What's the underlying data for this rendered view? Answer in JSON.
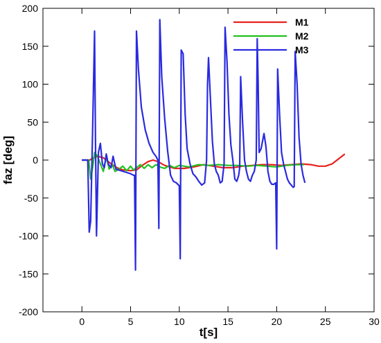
{
  "chart_data": {
    "type": "line",
    "title": "",
    "xlabel": "t[s]",
    "ylabel": "faz [deg]",
    "xlim": [
      -4,
      30
    ],
    "ylim": [
      -200,
      200
    ],
    "xticks": [
      0,
      5,
      10,
      15,
      20,
      25,
      30
    ],
    "yticks": [
      -200,
      -150,
      -100,
      -50,
      0,
      50,
      100,
      150,
      200
    ],
    "grid": false,
    "legend_position": "top-right",
    "series": [
      {
        "name": "M1",
        "color": "#e8201c",
        "points": [
          [
            0.0,
            0
          ],
          [
            0.8,
            0
          ],
          [
            1.2,
            3
          ],
          [
            1.6,
            5
          ],
          [
            2.2,
            3
          ],
          [
            3.0,
            -5
          ],
          [
            3.6,
            -10
          ],
          [
            4.2,
            -13
          ],
          [
            5.0,
            -14
          ],
          [
            5.6,
            -13
          ],
          [
            6.2,
            -7
          ],
          [
            6.8,
            -2
          ],
          [
            7.3,
            0
          ],
          [
            7.8,
            -2
          ],
          [
            8.5,
            -7
          ],
          [
            9.5,
            -11
          ],
          [
            10.5,
            -11
          ],
          [
            11.5,
            -9
          ],
          [
            12.5,
            -6
          ],
          [
            13.5,
            -8
          ],
          [
            14.5,
            -10
          ],
          [
            15.5,
            -10
          ],
          [
            16.5,
            -8
          ],
          [
            17.5,
            -7
          ],
          [
            18.5,
            -6
          ],
          [
            19.5,
            -6
          ],
          [
            20.5,
            -7
          ],
          [
            21.5,
            -6
          ],
          [
            22.5,
            -5
          ],
          [
            23.5,
            -6
          ],
          [
            24.3,
            -8
          ],
          [
            25.0,
            -8
          ],
          [
            25.7,
            -5
          ],
          [
            26.3,
            1
          ],
          [
            27.0,
            8
          ]
        ]
      },
      {
        "name": "M2",
        "color": "#22c01e",
        "points": [
          [
            0.0,
            0
          ],
          [
            0.7,
            0
          ],
          [
            0.9,
            -25
          ],
          [
            1.1,
            -10
          ],
          [
            1.3,
            10
          ],
          [
            1.6,
            5
          ],
          [
            1.9,
            -5
          ],
          [
            2.2,
            -15
          ],
          [
            2.5,
            5
          ],
          [
            2.8,
            -12
          ],
          [
            3.1,
            -5
          ],
          [
            3.4,
            -15
          ],
          [
            3.8,
            -12
          ],
          [
            4.2,
            -8
          ],
          [
            4.6,
            -14
          ],
          [
            5.0,
            -8
          ],
          [
            5.3,
            -13
          ],
          [
            5.6,
            -10
          ],
          [
            6.0,
            -6
          ],
          [
            6.4,
            -11
          ],
          [
            6.8,
            -6
          ],
          [
            7.2,
            -10
          ],
          [
            7.6,
            -6
          ],
          [
            8.0,
            -9
          ],
          [
            8.5,
            -11
          ],
          [
            9.0,
            -7
          ],
          [
            9.5,
            -10
          ],
          [
            10.0,
            -7
          ],
          [
            11.0,
            -9
          ],
          [
            12.0,
            -6
          ],
          [
            13.0,
            -7
          ],
          [
            14.0,
            -6
          ],
          [
            15.0,
            -7
          ],
          [
            16.0,
            -7
          ],
          [
            17.0,
            -8
          ],
          [
            18.0,
            -7
          ],
          [
            19.0,
            -8
          ],
          [
            20.0,
            -9
          ],
          [
            21.0,
            -7
          ],
          [
            22.0,
            -6
          ],
          [
            22.8,
            -6
          ]
        ]
      },
      {
        "name": "M3",
        "color": "#2a2ae0",
        "points": [
          [
            0.0,
            0
          ],
          [
            0.6,
            0
          ],
          [
            0.75,
            -95
          ],
          [
            0.9,
            -80
          ],
          [
            1.1,
            40
          ],
          [
            1.3,
            170
          ],
          [
            1.4,
            20
          ],
          [
            1.5,
            -100
          ],
          [
            1.7,
            10
          ],
          [
            1.9,
            22
          ],
          [
            2.1,
            -5
          ],
          [
            2.3,
            -10
          ],
          [
            2.5,
            8
          ],
          [
            2.7,
            -5
          ],
          [
            3.0,
            -10
          ],
          [
            3.2,
            5
          ],
          [
            3.5,
            -12
          ],
          [
            4.0,
            -14
          ],
          [
            4.5,
            -16
          ],
          [
            5.0,
            -18
          ],
          [
            5.3,
            -20
          ],
          [
            5.4,
            -20
          ],
          [
            5.5,
            -145
          ],
          [
            5.6,
            170
          ],
          [
            5.8,
            120
          ],
          [
            6.1,
            70
          ],
          [
            6.5,
            40
          ],
          [
            6.9,
            22
          ],
          [
            7.3,
            10
          ],
          [
            7.6,
            5
          ],
          [
            7.8,
            0
          ],
          [
            7.9,
            -90
          ],
          [
            8.0,
            185
          ],
          [
            8.2,
            110
          ],
          [
            8.5,
            55
          ],
          [
            8.8,
            12
          ],
          [
            9.1,
            -20
          ],
          [
            9.4,
            -28
          ],
          [
            9.7,
            -30
          ],
          [
            10.0,
            -34
          ],
          [
            10.1,
            -130
          ],
          [
            10.2,
            145
          ],
          [
            10.4,
            140
          ],
          [
            10.6,
            60
          ],
          [
            10.8,
            15
          ],
          [
            11.1,
            -5
          ],
          [
            11.4,
            -18
          ],
          [
            11.7,
            -22
          ],
          [
            12.0,
            -28
          ],
          [
            12.3,
            -33
          ],
          [
            12.6,
            -30
          ],
          [
            12.8,
            0
          ],
          [
            12.9,
            100
          ],
          [
            13.0,
            135
          ],
          [
            13.2,
            80
          ],
          [
            13.4,
            25
          ],
          [
            13.6,
            -5
          ],
          [
            13.8,
            -15
          ],
          [
            14.0,
            -20
          ],
          [
            14.2,
            -30
          ],
          [
            14.4,
            -28
          ],
          [
            14.6,
            -5
          ],
          [
            14.7,
            175
          ],
          [
            14.9,
            130
          ],
          [
            15.1,
            60
          ],
          [
            15.3,
            20
          ],
          [
            15.5,
            0
          ],
          [
            15.7,
            -25
          ],
          [
            15.9,
            -28
          ],
          [
            16.1,
            -20
          ],
          [
            16.2,
            -10
          ],
          [
            16.3,
            110
          ],
          [
            16.5,
            50
          ],
          [
            16.7,
            0
          ],
          [
            16.9,
            -15
          ],
          [
            17.1,
            -25
          ],
          [
            17.3,
            -28
          ],
          [
            17.5,
            -20
          ],
          [
            17.7,
            -15
          ],
          [
            17.9,
            0
          ],
          [
            18.0,
            160
          ],
          [
            18.1,
            100
          ],
          [
            18.2,
            10
          ],
          [
            18.4,
            15
          ],
          [
            18.7,
            35
          ],
          [
            18.9,
            18
          ],
          [
            19.1,
            -15
          ],
          [
            19.3,
            -28
          ],
          [
            19.5,
            -32
          ],
          [
            19.7,
            -32
          ],
          [
            19.9,
            -30
          ],
          [
            20.0,
            -117
          ],
          [
            20.1,
            120
          ],
          [
            20.3,
            60
          ],
          [
            20.5,
            10
          ],
          [
            20.7,
            -5
          ],
          [
            20.9,
            -15
          ],
          [
            21.1,
            -25
          ],
          [
            21.3,
            -30
          ],
          [
            21.5,
            -33
          ],
          [
            21.7,
            -36
          ],
          [
            21.8,
            -35
          ],
          [
            21.9,
            143
          ],
          [
            22.1,
            100
          ],
          [
            22.3,
            30
          ],
          [
            22.5,
            -5
          ],
          [
            22.7,
            -20
          ],
          [
            22.9,
            -30
          ]
        ]
      }
    ]
  }
}
